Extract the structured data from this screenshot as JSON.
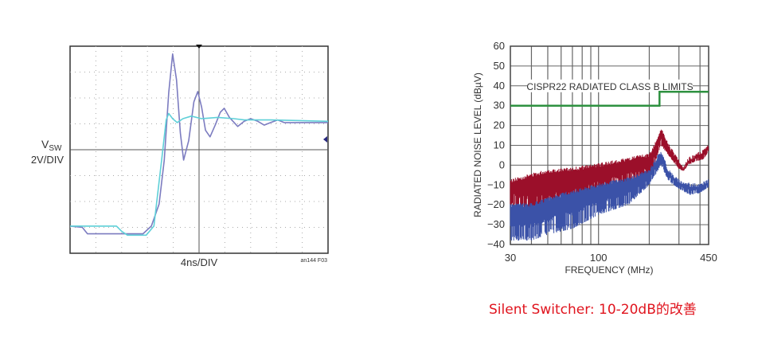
{
  "chart_data": [
    {
      "type": "line",
      "ylabel_main": "V",
      "ylabel_sub": "SW",
      "ylabel_scale": "2V/DIV",
      "xlabel": "4ns/DIV",
      "note": "an144 F03",
      "xlim": [
        0,
        40
      ],
      "ylim": [
        -8,
        8
      ],
      "grid": true,
      "colors": {
        "purple": "#7c7cc0",
        "cyan": "#5fd0d8"
      },
      "series": [
        {
          "color": "#7c7cc0",
          "points": [
            [
              0,
              -5.9
            ],
            [
              1.9,
              -6.0
            ],
            [
              2.7,
              -6.5
            ],
            [
              6.4,
              -6.5
            ],
            [
              11.3,
              -6.5
            ],
            [
              12.6,
              -5.9
            ],
            [
              13.8,
              -4.2
            ],
            [
              14.6,
              -0.8
            ],
            [
              15.3,
              4.4
            ],
            [
              15.9,
              7.4
            ],
            [
              16.5,
              5.4
            ],
            [
              17.1,
              1.3
            ],
            [
              17.6,
              -0.8
            ],
            [
              18.4,
              0.7
            ],
            [
              19.2,
              3.7
            ],
            [
              19.8,
              4.5
            ],
            [
              20.4,
              3.3
            ],
            [
              21.0,
              1.5
            ],
            [
              21.7,
              1.0
            ],
            [
              22.5,
              1.9
            ],
            [
              23.3,
              2.9
            ],
            [
              23.9,
              3.2
            ],
            [
              24.7,
              2.5
            ],
            [
              26.0,
              1.8
            ],
            [
              27.0,
              2.2
            ],
            [
              28.0,
              2.4
            ],
            [
              29.1,
              2.2
            ],
            [
              30.1,
              1.9
            ],
            [
              31.1,
              2.1
            ],
            [
              32.2,
              2.3
            ],
            [
              33.2,
              2.1
            ],
            [
              35.3,
              2.1
            ],
            [
              40,
              2.1
            ]
          ]
        },
        {
          "color": "#5fd0d8",
          "points": [
            [
              0,
              -5.9
            ],
            [
              7.2,
              -5.9
            ],
            [
              8.0,
              -6.3
            ],
            [
              8.9,
              -6.6
            ],
            [
              11.8,
              -6.6
            ],
            [
              13.0,
              -5.9
            ],
            [
              14.2,
              -0.8
            ],
            [
              14.9,
              2.3
            ],
            [
              15.3,
              2.8
            ],
            [
              15.9,
              2.4
            ],
            [
              16.6,
              2.1
            ],
            [
              17.5,
              2.4
            ],
            [
              18.8,
              2.6
            ],
            [
              20.4,
              2.4
            ],
            [
              22.9,
              2.5
            ],
            [
              25.4,
              2.4
            ],
            [
              27.0,
              2.3
            ],
            [
              31.1,
              2.3
            ],
            [
              40,
              2.2
            ]
          ]
        }
      ]
    },
    {
      "type": "area",
      "xlabel": "FREQUENCY (MHz)",
      "ylabel": "RADIATED NOISE LEVEL (dBµV)",
      "xscale": "log",
      "xlim": [
        30,
        450
      ],
      "ylim": [
        -40,
        60
      ],
      "xticks": [
        "30",
        "100",
        "450"
      ],
      "yticks": [
        "60",
        "50",
        "40",
        "30",
        "20",
        "10",
        "0",
        "-10",
        "-20",
        "-30",
        "-40"
      ],
      "grid": true,
      "annotation": "CISPR22 RADIATED CLASS B LIMITS",
      "limit_line": {
        "color": "#2e9140",
        "points": [
          [
            30,
            30
          ],
          [
            230,
            30
          ],
          [
            230,
            37
          ],
          [
            450,
            37
          ]
        ]
      },
      "series": [
        {
          "color": "#9b0f2a",
          "upper": [
            [
              30,
              -8
            ],
            [
              40,
              -5
            ],
            [
              50,
              -3
            ],
            [
              70,
              -2
            ],
            [
              100,
              0
            ],
            [
              150,
              3
            ],
            [
              200,
              5
            ],
            [
              220,
              12
            ],
            [
              235,
              18
            ],
            [
              260,
              10
            ],
            [
              300,
              2
            ],
            [
              320,
              -2
            ],
            [
              340,
              3
            ],
            [
              380,
              5
            ],
            [
              420,
              7
            ],
            [
              450,
              10
            ]
          ],
          "lower": [
            [
              30,
              -20
            ],
            [
              40,
              -25
            ],
            [
              50,
              -25
            ],
            [
              70,
              -20
            ],
            [
              100,
              -15
            ],
            [
              150,
              -10
            ],
            [
              200,
              -7
            ],
            [
              235,
              10
            ],
            [
              260,
              5
            ],
            [
              300,
              -2
            ],
            [
              320,
              -3
            ],
            [
              340,
              0
            ],
            [
              380,
              2
            ],
            [
              420,
              3
            ],
            [
              450,
              7
            ]
          ]
        },
        {
          "color": "#3b52a8",
          "upper": [
            [
              30,
              -20
            ],
            [
              40,
              -20
            ],
            [
              60,
              -15
            ],
            [
              100,
              -10
            ],
            [
              150,
              -7
            ],
            [
              200,
              -3
            ],
            [
              235,
              7
            ],
            [
              260,
              -3
            ],
            [
              300,
              -8
            ],
            [
              350,
              -10
            ],
            [
              400,
              -10
            ],
            [
              450,
              -8
            ]
          ],
          "lower": [
            [
              30,
              -38
            ],
            [
              40,
              -38
            ],
            [
              50,
              -35
            ],
            [
              70,
              -32
            ],
            [
              100,
              -25
            ],
            [
              150,
              -20
            ],
            [
              200,
              -10
            ],
            [
              235,
              0
            ],
            [
              260,
              -8
            ],
            [
              300,
              -12
            ],
            [
              350,
              -15
            ],
            [
              400,
              -14
            ],
            [
              450,
              -11
            ]
          ]
        }
      ]
    }
  ],
  "caption": "Silent Switcher: 10-20dB的改善"
}
